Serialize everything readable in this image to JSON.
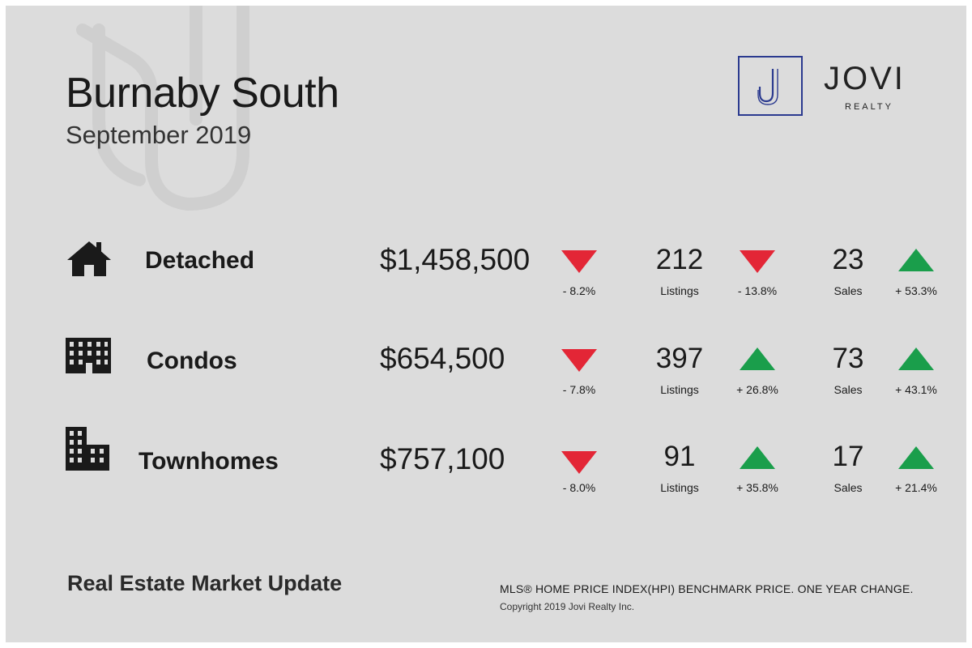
{
  "header": {
    "title": "Burnaby South",
    "subtitle": "September 2019"
  },
  "brand": {
    "name": "JOVI",
    "tagline": "REALTY",
    "monogram": "J",
    "color": "#2b3a8f"
  },
  "colors": {
    "down": "#e32636",
    "up": "#1a9e4b",
    "background": "#dcdcdc"
  },
  "rows": [
    {
      "icon": "house-icon",
      "label": "Detached",
      "price": "$1,458,500",
      "price_change": {
        "direction": "down",
        "text": "- 8.2%"
      },
      "listings": {
        "value": "212",
        "label": "Listings",
        "direction": "down",
        "text": "- 13.8%"
      },
      "sales": {
        "value": "23",
        "label": "Sales",
        "direction": "up",
        "text": "+ 53.3%"
      }
    },
    {
      "icon": "condo-building-icon",
      "label": "Condos",
      "price": "$654,500",
      "price_change": {
        "direction": "down",
        "text": "- 7.8%"
      },
      "listings": {
        "value": "397",
        "label": "Listings",
        "direction": "up",
        "text": "+ 26.8%"
      },
      "sales": {
        "value": "73",
        "label": "Sales",
        "direction": "up",
        "text": "+ 43.1%"
      }
    },
    {
      "icon": "townhome-building-icon",
      "label": "Townhomes",
      "price": "$757,100",
      "price_change": {
        "direction": "down",
        "text": "- 8.0%"
      },
      "listings": {
        "value": "91",
        "label": "Listings",
        "direction": "up",
        "text": "+ 35.8%"
      },
      "sales": {
        "value": "17",
        "label": "Sales",
        "direction": "up",
        "text": "+ 21.4%"
      }
    }
  ],
  "footer": {
    "title": "Real Estate Market Update",
    "note": "MLS® HOME PRICE INDEX(HPI) BENCHMARK PRICE.   ONE YEAR CHANGE.",
    "copyright": "Copyright 2019 Jovi Realty Inc."
  }
}
